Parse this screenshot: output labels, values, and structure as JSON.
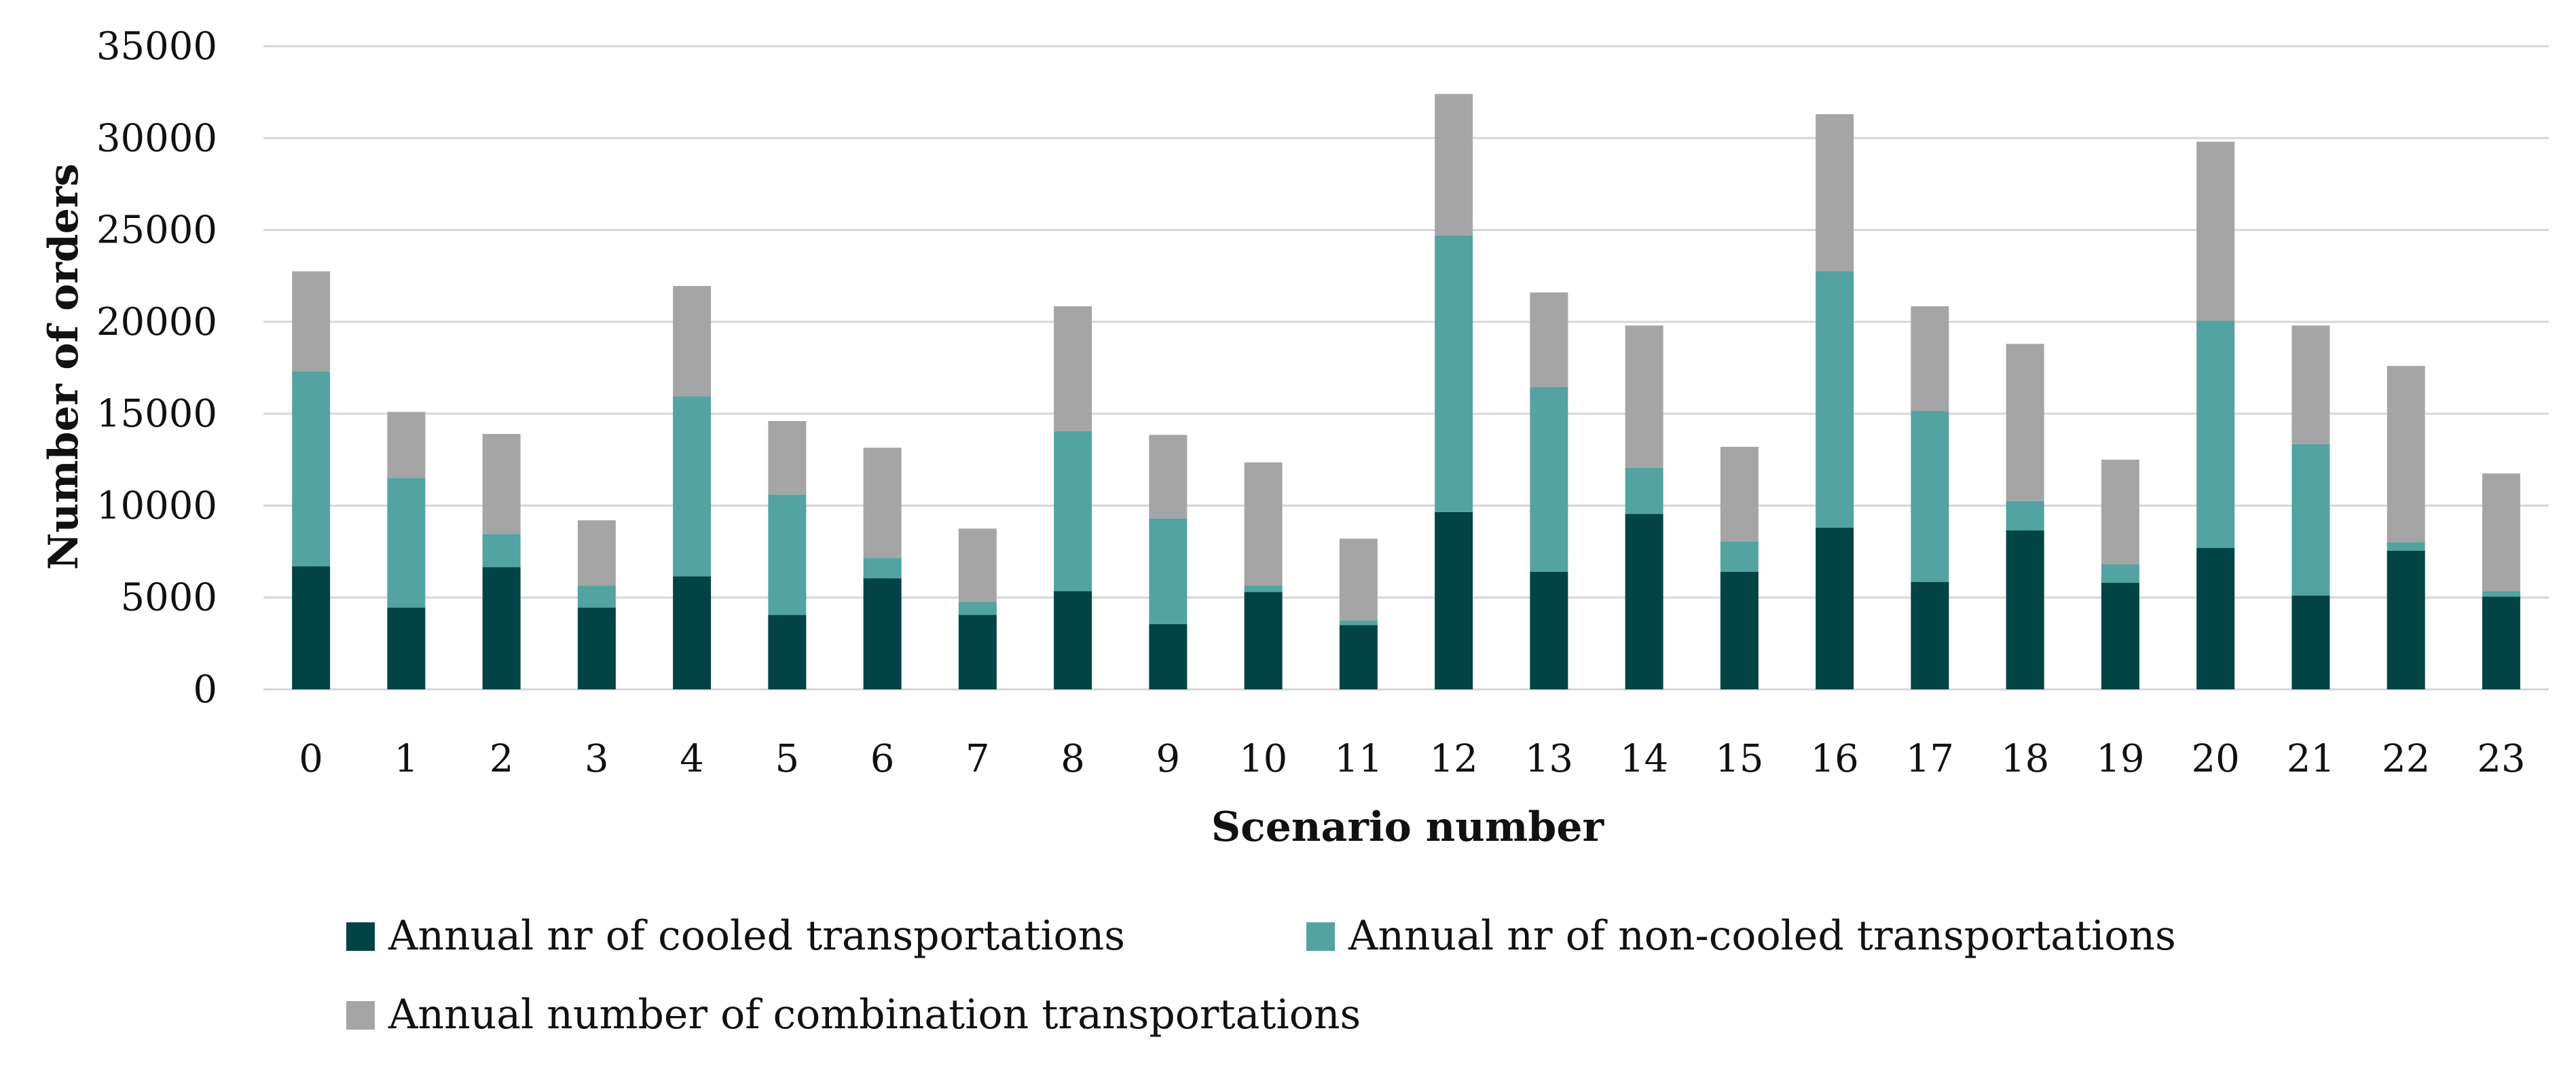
{
  "chart_data": {
    "type": "bar",
    "stacked": true,
    "title": "",
    "xlabel": "Scenario number",
    "ylabel": "Number of orders",
    "ylim": [
      0,
      35000
    ],
    "yticks": [
      "0",
      "5000",
      "10000",
      "15000",
      "20000",
      "25000",
      "30000",
      "35000"
    ],
    "grid": true,
    "legend_position": "bottom",
    "categories": [
      "0",
      "1",
      "2",
      "3",
      "4",
      "5",
      "6",
      "7",
      "8",
      "9",
      "10",
      "11",
      "12",
      "13",
      "14",
      "15",
      "16",
      "17",
      "18",
      "19",
      "20",
      "21",
      "22",
      "23"
    ],
    "series": [
      {
        "name": "Annual nr of cooled transportations",
        "color": "#024346",
        "values": [
          6700,
          4450,
          6650,
          4450,
          6150,
          4050,
          6050,
          4050,
          5350,
          3550,
          5300,
          3500,
          9650,
          6400,
          9550,
          6400,
          8800,
          5850,
          8650,
          5800,
          7700,
          5100,
          7550,
          5050
        ]
      },
      {
        "name": "Annual nr of non-cooled transportations",
        "color": "#52A3A1",
        "values": [
          10600,
          7050,
          1800,
          1200,
          9800,
          6550,
          1100,
          700,
          8700,
          5750,
          350,
          250,
          15050,
          10050,
          2500,
          1650,
          13950,
          9300,
          1600,
          1000,
          12350,
          8250,
          450,
          300
        ]
      },
      {
        "name": "Annual number of combination transportations",
        "color": "#A5A5A5",
        "values": [
          5450,
          3600,
          5450,
          3550,
          6000,
          4000,
          6000,
          4000,
          6800,
          4550,
          6700,
          4450,
          7700,
          5150,
          7750,
          5150,
          8550,
          5700,
          8550,
          5700,
          9750,
          6450,
          9600,
          6400
        ]
      }
    ]
  }
}
